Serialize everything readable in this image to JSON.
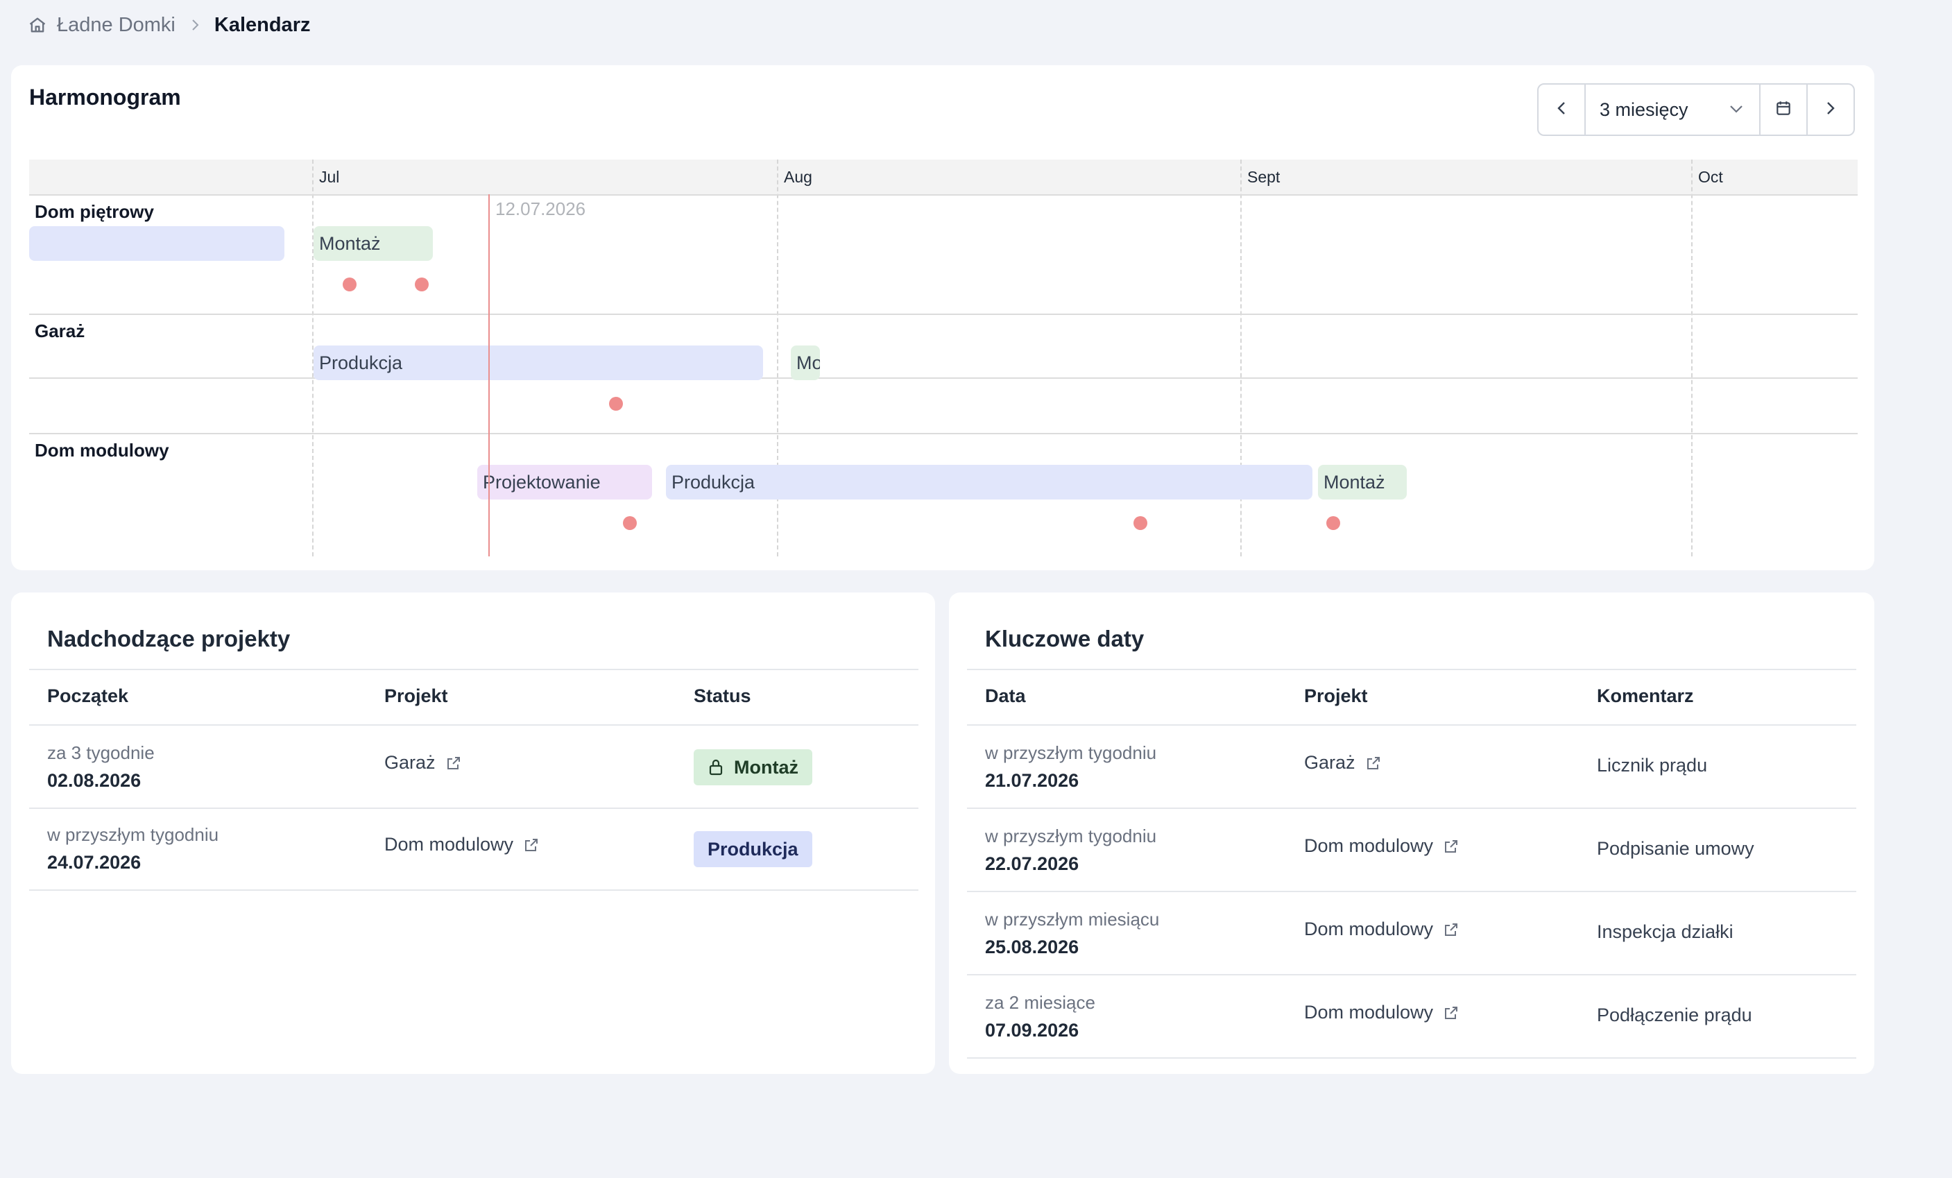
{
  "breadcrumb": {
    "root": "Ładne Domki",
    "current": "Kalendarz",
    "home_icon": "home-icon",
    "separator_icon": "chevron-right-icon"
  },
  "timeline": {
    "title": "Harmonogram",
    "range": {
      "selected": "3 miesięcy",
      "prev_icon": "chevron-left-icon",
      "next_icon": "chevron-right-icon",
      "calendar_icon": "calendar-icon",
      "dropdown_icon": "chevron-down-icon"
    },
    "months": [
      "Jul",
      "Aug",
      "Sept",
      "Oct"
    ],
    "today_label": "12.07.2026",
    "rows": [
      {
        "label": "Dom piętrowy",
        "bars": [
          {
            "label": "",
            "color": "blue"
          },
          {
            "label": "Montaż",
            "color": "green"
          }
        ]
      },
      {
        "label": "Garaż",
        "bars": [
          {
            "label": "Produkcja",
            "color": "blue"
          },
          {
            "label": "Montaż",
            "color": "green"
          }
        ]
      },
      {
        "label": "Dom modulowy",
        "bars": [
          {
            "label": "Projektowanie",
            "color": "purple"
          },
          {
            "label": "Produkcja",
            "color": "blue"
          },
          {
            "label": "Montaż",
            "color": "green"
          }
        ]
      }
    ],
    "colors": {
      "blue": "#e1e6fb",
      "green": "#e2f1e4",
      "purple": "#f0e2f9",
      "milestone": "#ef8c8c",
      "today": "#ea8f8f"
    }
  },
  "upcoming": {
    "title": "Nadchodzące projekty",
    "columns": [
      "Początek",
      "Projekt",
      "Status"
    ],
    "rows": [
      {
        "relative": "za 3 tygodnie",
        "date": "02.08.2026",
        "project": "Garaż",
        "status": "Montaż",
        "status_color": "green",
        "status_icon": "lock-icon"
      },
      {
        "relative": "w przyszłym tygodniu",
        "date": "24.07.2026",
        "project": "Dom modulowy",
        "status": "Produkcja",
        "status_color": "blue"
      }
    ]
  },
  "key_dates": {
    "title": "Kluczowe daty",
    "columns": [
      "Data",
      "Projekt",
      "Komentarz"
    ],
    "rows": [
      {
        "relative": "w przyszłym tygodniu",
        "date": "21.07.2026",
        "project": "Garaż",
        "comment": "Licznik prądu"
      },
      {
        "relative": "w przyszłym tygodniu",
        "date": "22.07.2026",
        "project": "Dom modulowy",
        "comment": "Podpisanie umowy"
      },
      {
        "relative": "w przyszłym miesiącu",
        "date": "25.08.2026",
        "project": "Dom modulowy",
        "comment": "Inspekcja działki"
      },
      {
        "relative": "za 2 miesiące",
        "date": "07.09.2026",
        "project": "Dom modulowy",
        "comment": "Podłączenie prądu"
      }
    ]
  }
}
